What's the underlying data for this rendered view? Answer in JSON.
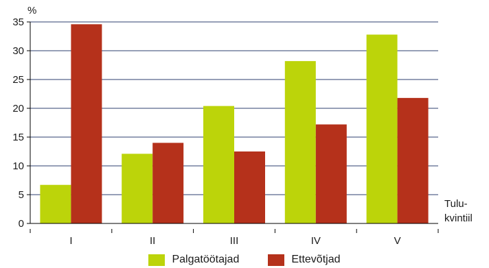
{
  "chart_data": {
    "type": "bar",
    "title": "",
    "ylabel": "%",
    "xlabel_lines": [
      "Tulu-",
      "kvintiil"
    ],
    "ylim": [
      0,
      35
    ],
    "yticks": [
      0,
      5,
      10,
      15,
      20,
      25,
      30,
      35
    ],
    "grid": true,
    "legend_position": "bottom-center",
    "categories": [
      "I",
      "II",
      "III",
      "IV",
      "V"
    ],
    "series": [
      {
        "name": "Palgatöötajad",
        "color": "#bcd40a",
        "values": [
          6.7,
          12.1,
          20.4,
          28.2,
          32.8
        ]
      },
      {
        "name": "Ettevõtjad",
        "color": "#b5311b",
        "values": [
          34.6,
          14.0,
          12.5,
          17.2,
          21.8
        ]
      }
    ]
  }
}
